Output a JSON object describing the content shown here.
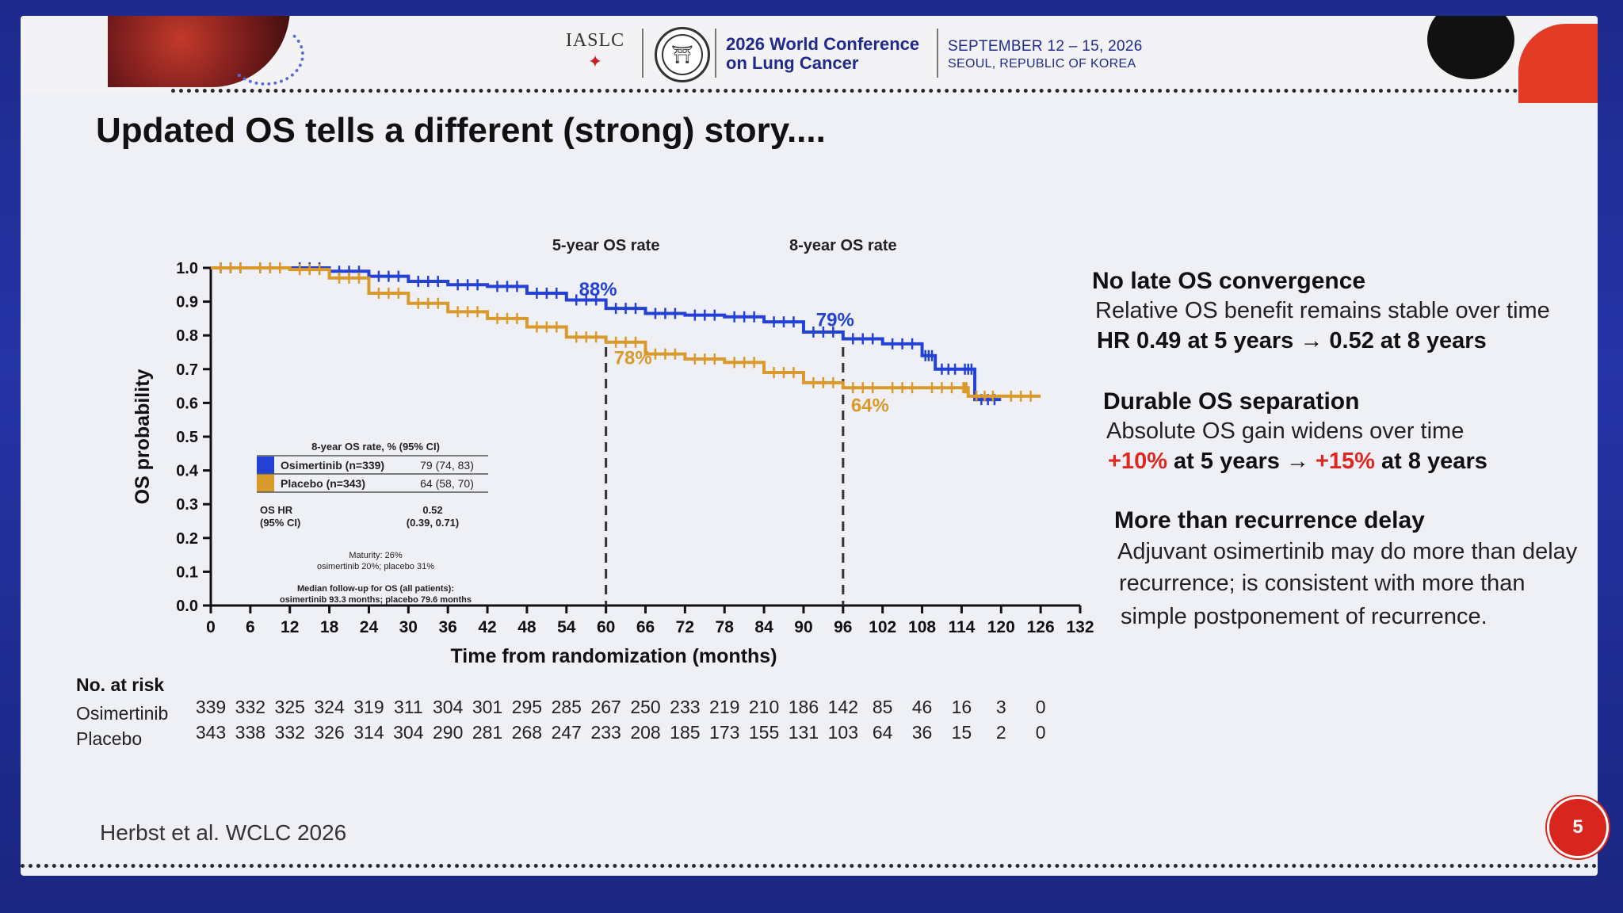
{
  "header": {
    "org_logo": "IASLC",
    "conference_line1": "2026 World Conference",
    "conference_line2": "on Lung Cancer",
    "dates": "SEPTEMBER 12 – 15, 2026",
    "location": "SEOUL, REPUBLIC OF KOREA"
  },
  "slide": {
    "title": "Updated OS tells a different (strong) story....",
    "citation": "Herbst et al. WCLC 2026",
    "page_number": "5"
  },
  "colors": {
    "osimertinib": "#2441d6",
    "placebo": "#d99a2b",
    "red": "#e0261f",
    "title_blue": "#1f2a8a"
  },
  "chart_data": {
    "type": "line",
    "xlabel": "Time from randomization (months)",
    "ylabel": "OS probability",
    "xlim": [
      0,
      132
    ],
    "ylim": [
      0,
      1.0
    ],
    "x_ticks": [
      0,
      6,
      12,
      18,
      24,
      30,
      36,
      42,
      48,
      54,
      60,
      66,
      72,
      78,
      84,
      90,
      96,
      102,
      108,
      114,
      120,
      126,
      132
    ],
    "y_ticks": [
      "0.0",
      "0.1",
      "0.2",
      "0.3",
      "0.4",
      "0.5",
      "0.6",
      "0.7",
      "0.8",
      "0.9",
      "1.0"
    ],
    "series": [
      {
        "name": "Osimertinib (n=339)",
        "points": [
          [
            0,
            1.0
          ],
          [
            6,
            1.0
          ],
          [
            12,
            1.0
          ],
          [
            18,
            0.99
          ],
          [
            24,
            0.975
          ],
          [
            30,
            0.96
          ],
          [
            36,
            0.95
          ],
          [
            42,
            0.945
          ],
          [
            48,
            0.925
          ],
          [
            54,
            0.905
          ],
          [
            60,
            0.88
          ],
          [
            66,
            0.865
          ],
          [
            72,
            0.86
          ],
          [
            78,
            0.855
          ],
          [
            84,
            0.84
          ],
          [
            90,
            0.81
          ],
          [
            96,
            0.79
          ],
          [
            102,
            0.775
          ],
          [
            108,
            0.74
          ],
          [
            110,
            0.7
          ],
          [
            114,
            0.7
          ],
          [
            116,
            0.61
          ],
          [
            120,
            0.61
          ]
        ]
      },
      {
        "name": "Placebo (n=343)",
        "points": [
          [
            0,
            1.0
          ],
          [
            6,
            1.0
          ],
          [
            12,
            0.995
          ],
          [
            18,
            0.97
          ],
          [
            24,
            0.925
          ],
          [
            30,
            0.895
          ],
          [
            36,
            0.87
          ],
          [
            42,
            0.85
          ],
          [
            48,
            0.825
          ],
          [
            54,
            0.795
          ],
          [
            60,
            0.78
          ],
          [
            66,
            0.745
          ],
          [
            72,
            0.73
          ],
          [
            78,
            0.72
          ],
          [
            84,
            0.69
          ],
          [
            90,
            0.66
          ],
          [
            96,
            0.645
          ],
          [
            102,
            0.645
          ],
          [
            108,
            0.645
          ],
          [
            114,
            0.645
          ],
          [
            115,
            0.62
          ],
          [
            120,
            0.62
          ],
          [
            126,
            0.62
          ]
        ]
      }
    ],
    "reference_lines": [
      {
        "label": "5-year OS rate",
        "x": 60
      },
      {
        "label": "8-year OS rate",
        "x": 96
      }
    ],
    "annotations": [
      {
        "text": "88%",
        "series": "osimertinib",
        "x": 60,
        "y": 0.88
      },
      {
        "text": "78%",
        "series": "placebo",
        "x": 60,
        "y": 0.78
      },
      {
        "text": "79%",
        "series": "osimertinib",
        "x": 96,
        "y": 0.79
      },
      {
        "text": "64%",
        "series": "placebo",
        "x": 96,
        "y": 0.64
      }
    ],
    "legend": {
      "placement": "bottom-left",
      "header": "8-year OS rate, % (95% CI)",
      "rows": [
        {
          "series": "Osimertinib (n=339)",
          "value": "79 (74, 83)"
        },
        {
          "series": "Placebo (n=343)",
          "value": "64 (58, 70)"
        }
      ],
      "hr_label_1": "OS HR",
      "hr_label_2": "(95% CI)",
      "hr_value": "0.52",
      "hr_ci": "(0.39, 0.71)",
      "maturity_1": "Maturity: 26%",
      "maturity_2": "osimertinib 20%; placebo 31%",
      "followup_1": "Median follow-up for OS (all patients):",
      "followup_2": "osimertinib 93.3 months; placebo 79.6 months"
    },
    "risk_table": {
      "title": "No. at risk",
      "rows": [
        {
          "label": "Osimertinib",
          "values": [
            339,
            332,
            325,
            324,
            319,
            311,
            304,
            301,
            295,
            285,
            267,
            250,
            233,
            219,
            210,
            186,
            142,
            85,
            46,
            16,
            3,
            0
          ]
        },
        {
          "label": "Placebo",
          "values": [
            343,
            338,
            332,
            326,
            314,
            304,
            290,
            281,
            268,
            247,
            233,
            208,
            185,
            173,
            155,
            131,
            103,
            64,
            36,
            15,
            2,
            0
          ]
        }
      ]
    }
  },
  "right_panel": [
    {
      "heading": "No late OS convergence",
      "line1": "Relative OS benefit remains stable over time",
      "line2": "HR 0.49 at 5 years → 0.52 at 8 years"
    },
    {
      "heading": "Durable OS separation",
      "line1": "Absolute OS gain widens over time",
      "line2_a": "+10%",
      "line2_b": " at 5 years → ",
      "line2_c": "+15%",
      "line2_d": " at 8 years"
    },
    {
      "heading": "More than recurrence delay",
      "line1": "Adjuvant osimertinib may do more than delay",
      "line2": "recurrence; is consistent with more than",
      "line3": "simple postponement of recurrence."
    }
  ]
}
